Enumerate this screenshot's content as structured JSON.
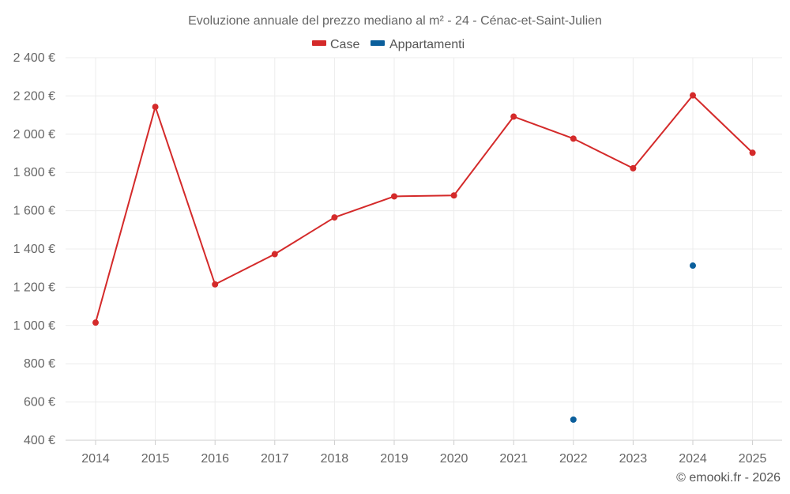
{
  "chart_data": {
    "type": "line",
    "title": "Evoluzione annuale del prezzo mediano al m² - 24 - Cénac-et-Saint-Julien",
    "categories": [
      "2014",
      "2015",
      "2016",
      "2017",
      "2018",
      "2019",
      "2020",
      "2021",
      "2022",
      "2023",
      "2024",
      "2025"
    ],
    "series": [
      {
        "name": "Case",
        "color": "#d42a2a",
        "values": [
          1015,
          2143,
          1215,
          1373,
          1565,
          1675,
          1680,
          2092,
          1977,
          1822,
          2203,
          1903
        ]
      },
      {
        "name": "Appartamenti",
        "color": "#0b5f9c",
        "values": [
          null,
          null,
          null,
          null,
          null,
          null,
          null,
          null,
          508,
          null,
          1313,
          null
        ]
      }
    ],
    "ylim": [
      400,
      2400
    ],
    "yticks": [
      400,
      600,
      800,
      1000,
      1200,
      1400,
      1600,
      1800,
      2000,
      2200,
      2400
    ],
    "ytick_labels": [
      "400 €",
      "600 €",
      "800 €",
      "1 000 €",
      "1 200 €",
      "1 400 €",
      "1 600 €",
      "1 800 €",
      "2 000 €",
      "2 200 €",
      "2 400 €"
    ],
    "xlabel": "",
    "ylabel": "",
    "grid": true,
    "legend_position": "top-center"
  },
  "credit": "© emooki.fr - 2026"
}
